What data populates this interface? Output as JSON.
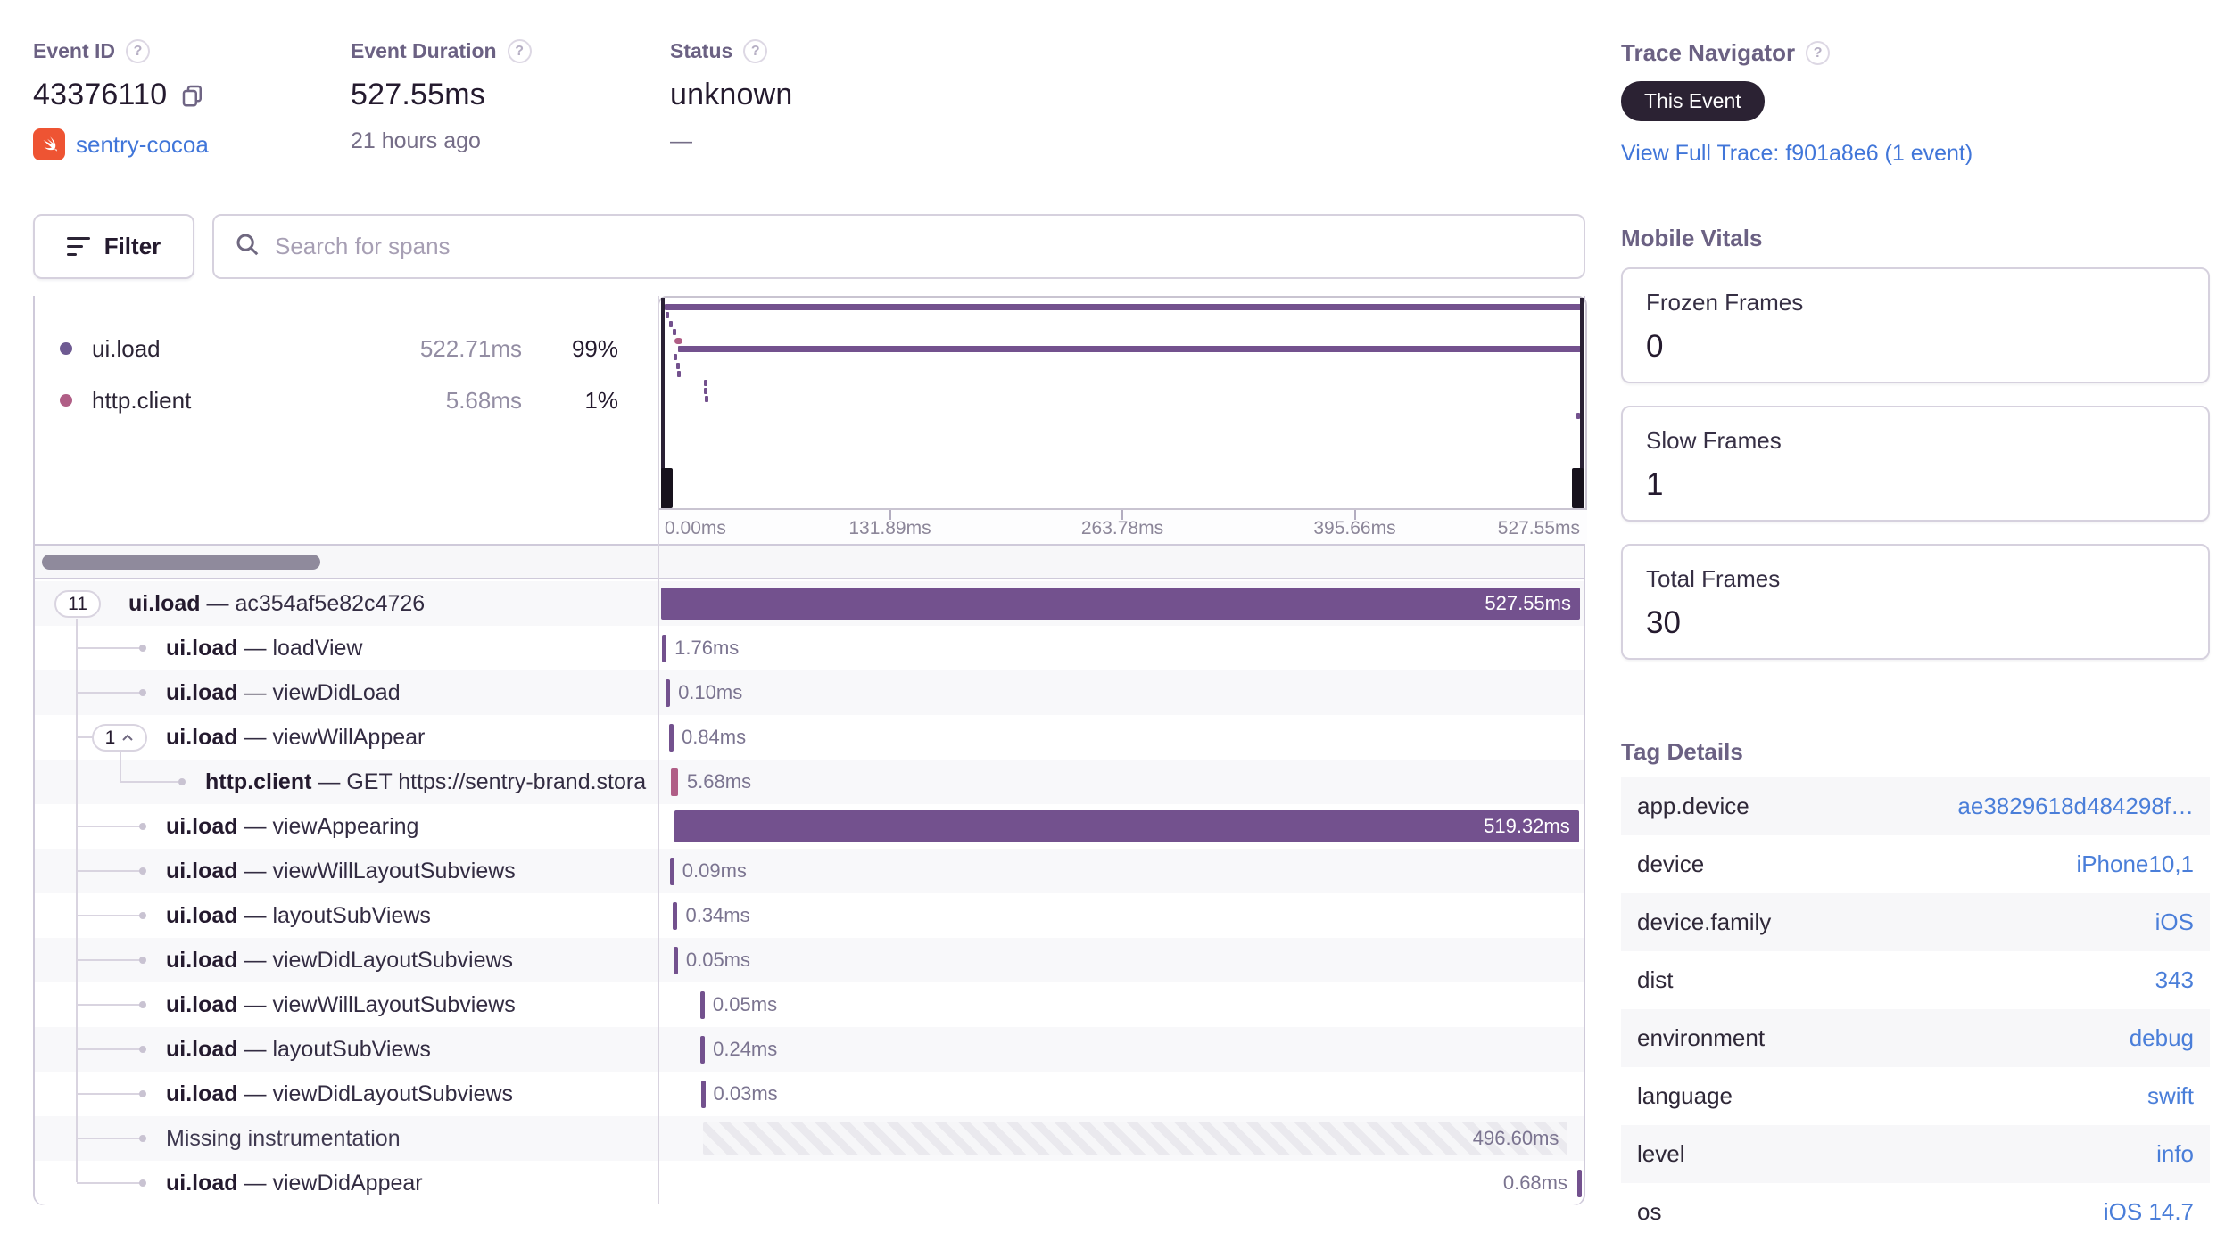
{
  "header": {
    "event_id": {
      "label": "Event ID",
      "value": "43376110",
      "project": "sentry-cocoa"
    },
    "event_duration": {
      "label": "Event Duration",
      "value": "527.55ms",
      "age": "21 hours ago"
    },
    "status": {
      "label": "Status",
      "value": "unknown",
      "sub": "—"
    },
    "trace_navigator": {
      "label": "Trace Navigator",
      "badge": "This Event",
      "link": "View Full Trace: f901a8e6 (1 event)"
    }
  },
  "toolbar": {
    "filter_label": "Filter",
    "search_placeholder": "Search for spans"
  },
  "legend": {
    "items": [
      {
        "op": "ui.load",
        "duration": "522.71ms",
        "percent": "99%",
        "color": "#6e5a92"
      },
      {
        "op": "http.client",
        "duration": "5.68ms",
        "percent": "1%",
        "color": "#b05e86"
      }
    ]
  },
  "axis": {
    "ticks": [
      "0.00ms",
      "131.89ms",
      "263.78ms",
      "395.66ms",
      "527.55ms"
    ]
  },
  "waterfall": {
    "total_ms": 527.55,
    "rows": [
      {
        "op": "ui.load",
        "name": "ac354af5e82c4726",
        "depth": 0,
        "pill": "11",
        "start_ms": 0,
        "duration_ms": 527.55,
        "duration_label": "527.55ms",
        "render": "bar"
      },
      {
        "op": "ui.load",
        "name": "loadView",
        "depth": 1,
        "start_ms": 0.6,
        "duration_ms": 1.76,
        "duration_label": "1.76ms",
        "render": "tick"
      },
      {
        "op": "ui.load",
        "name": "viewDidLoad",
        "depth": 1,
        "start_ms": 2.6,
        "duration_ms": 0.1,
        "duration_label": "0.10ms",
        "render": "tick"
      },
      {
        "op": "ui.load",
        "name": "viewWillAppear",
        "depth": 1,
        "pill": "1",
        "expanded": true,
        "start_ms": 4.6,
        "duration_ms": 0.84,
        "duration_label": "0.84ms",
        "render": "tick"
      },
      {
        "op": "http.client",
        "name": "GET https://sentry-brand.stora",
        "depth": 2,
        "start_ms": 5.6,
        "duration_ms": 5.68,
        "duration_label": "5.68ms",
        "render": "tick",
        "color": "pink"
      },
      {
        "op": "ui.load",
        "name": "viewAppearing",
        "depth": 1,
        "start_ms": 7.6,
        "duration_ms": 519.32,
        "duration_label": "519.32ms",
        "render": "bar"
      },
      {
        "op": "ui.load",
        "name": "viewWillLayoutSubviews",
        "depth": 1,
        "start_ms": 5.0,
        "duration_ms": 0.09,
        "duration_label": "0.09ms",
        "render": "tick"
      },
      {
        "op": "ui.load",
        "name": "layoutSubViews",
        "depth": 1,
        "start_ms": 6.9,
        "duration_ms": 0.34,
        "duration_label": "0.34ms",
        "render": "tick"
      },
      {
        "op": "ui.load",
        "name": "viewDidLayoutSubviews",
        "depth": 1,
        "start_ms": 7.1,
        "duration_ms": 0.05,
        "duration_label": "0.05ms",
        "render": "tick"
      },
      {
        "op": "ui.load",
        "name": "viewWillLayoutSubviews",
        "depth": 1,
        "start_ms": 22.5,
        "duration_ms": 0.05,
        "duration_label": "0.05ms",
        "render": "tick"
      },
      {
        "op": "ui.load",
        "name": "layoutSubViews",
        "depth": 1,
        "start_ms": 22.6,
        "duration_ms": 0.24,
        "duration_label": "0.24ms",
        "render": "tick"
      },
      {
        "op": "ui.load",
        "name": "viewDidLayoutSubviews",
        "depth": 1,
        "start_ms": 22.8,
        "duration_ms": 0.03,
        "duration_label": "0.03ms",
        "render": "tick"
      },
      {
        "op": null,
        "name": "Missing instrumentation",
        "depth": 1,
        "start_ms": 24.0,
        "duration_ms": 496.6,
        "duration_label": "496.60ms",
        "render": "striped"
      },
      {
        "op": "ui.load",
        "name": "viewDidAppear",
        "depth": 1,
        "start_ms": 526.85,
        "duration_ms": 0.68,
        "duration_label": "0.68ms",
        "render": "right_tick"
      }
    ]
  },
  "vitals": {
    "heading": "Mobile Vitals",
    "cards": [
      {
        "label": "Frozen Frames",
        "value": "0"
      },
      {
        "label": "Slow Frames",
        "value": "1"
      },
      {
        "label": "Total Frames",
        "value": "30"
      }
    ]
  },
  "tags": {
    "heading": "Tag Details",
    "rows": [
      {
        "key": "app.device",
        "value": "ae3829618d484298f…"
      },
      {
        "key": "device",
        "value": "iPhone10,1"
      },
      {
        "key": "device.family",
        "value": "iOS"
      },
      {
        "key": "dist",
        "value": "343"
      },
      {
        "key": "environment",
        "value": "debug"
      },
      {
        "key": "language",
        "value": "swift"
      },
      {
        "key": "level",
        "value": "info"
      },
      {
        "key": "os",
        "value": "iOS 14.7"
      }
    ]
  },
  "colors": {
    "span_purple": "#73518e",
    "span_pink": "#b05e86",
    "link_blue": "#4176d9",
    "badge_bg": "#2b2233",
    "swift_orange": "#ee5433"
  }
}
